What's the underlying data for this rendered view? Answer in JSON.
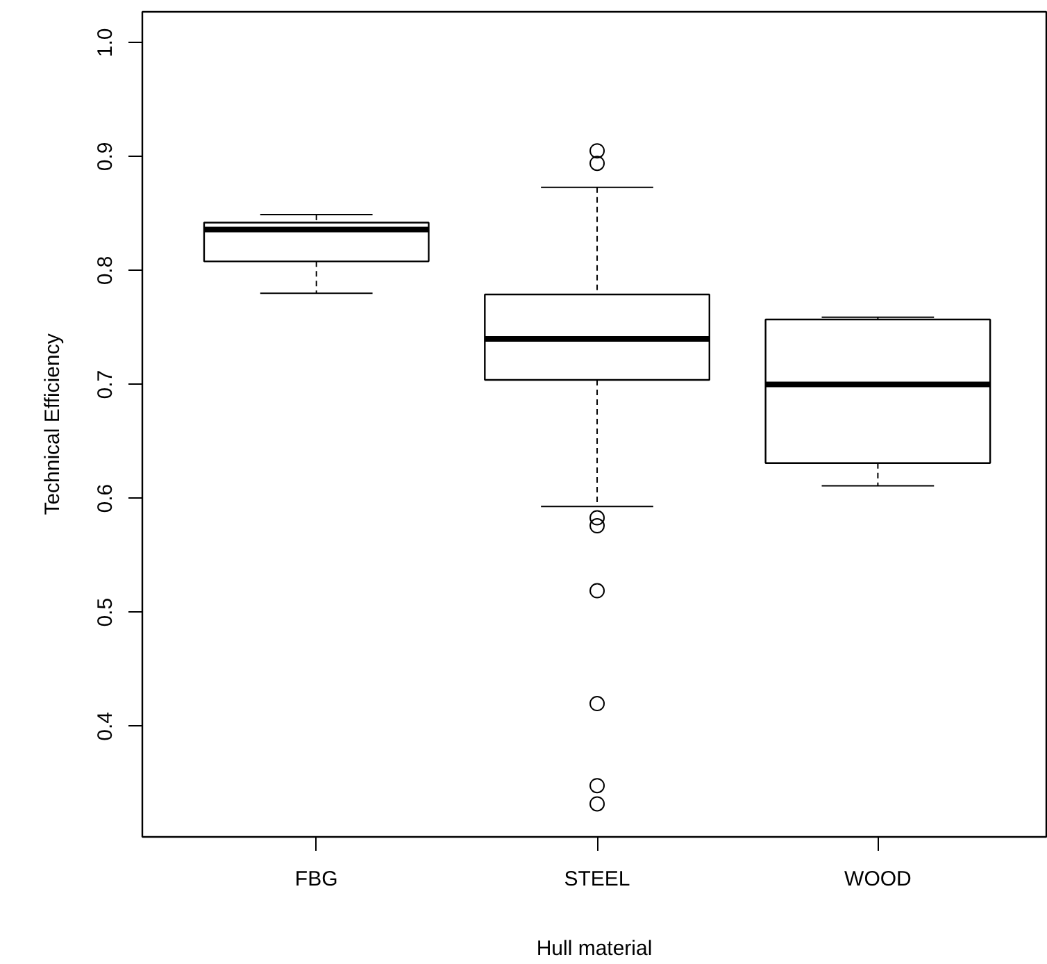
{
  "chart_data": {
    "type": "box",
    "xlabel": "Hull material",
    "ylabel": "Technical Efficiency",
    "categories": [
      "FBG",
      "STEEL",
      "WOOD"
    ],
    "boxes": [
      {
        "low": 0.78,
        "q1": 0.808,
        "median": 0.836,
        "q3": 0.842,
        "high": 0.849
      },
      {
        "low": 0.593,
        "q1": 0.704,
        "median": 0.74,
        "q3": 0.779,
        "high": 0.873,
        "outliers": [
          0.905,
          0.894,
          0.583,
          0.576,
          0.519,
          0.42,
          0.348,
          0.332
        ]
      },
      {
        "low": 0.611,
        "q1": 0.631,
        "median": 0.7,
        "q3": 0.757,
        "high": 0.759
      }
    ],
    "ylim": [
      0.303,
      1.027
    ],
    "yticks": [
      0.4,
      0.5,
      0.6,
      0.7,
      0.8,
      0.9,
      {
        "value": 1.0,
        "label": "1.0"
      }
    ],
    "grid": false
  }
}
